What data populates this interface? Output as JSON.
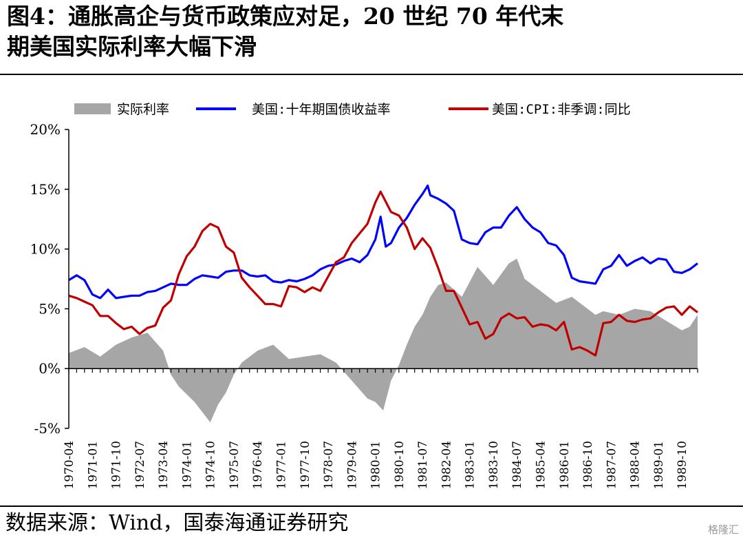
{
  "header": {
    "title_line1": "图4：通胀高企与货币政策应对足，20 世纪 70 年代末",
    "title_line2": "期美国实际利率大幅下滑"
  },
  "footer": {
    "source": "数据来源：Wind，国泰海通证券研究",
    "watermark": "格隆汇"
  },
  "chart_data": {
    "type": "line",
    "y_tick_labels": [
      "20%",
      "15%",
      "10%",
      "5%",
      "0%",
      "-5%"
    ],
    "ylim": [
      -5,
      20
    ],
    "x_tick_labels": [
      "1970-04",
      "1971-01",
      "1971-10",
      "1972-07",
      "1973-04",
      "1974-01",
      "1974-10",
      "1975-07",
      "1976-04",
      "1977-01",
      "1977-10",
      "1978-07",
      "1979-04",
      "1980-01",
      "1980-10",
      "1981-07",
      "1982-04",
      "1983-01",
      "1983-10",
      "1984-07",
      "1985-04",
      "1986-01",
      "1986-10",
      "1987-07",
      "1988-04",
      "1989-01",
      "1989-10"
    ],
    "xlim": [
      "1970-04",
      "1990-04"
    ],
    "legend_position": "top",
    "series": [
      {
        "name": "实际利率",
        "kind": "area",
        "color": "#a6a6a6",
        "x": [
          "1970-04",
          "1970-10",
          "1971-04",
          "1971-10",
          "1972-04",
          "1972-10",
          "1973-04",
          "1973-07",
          "1973-10",
          "1974-04",
          "1974-10",
          "1975-01",
          "1975-04",
          "1975-07",
          "1975-10",
          "1976-04",
          "1976-10",
          "1977-04",
          "1977-10",
          "1978-04",
          "1978-10",
          "1979-04",
          "1979-10",
          "1980-01",
          "1980-04",
          "1980-07",
          "1980-10",
          "1981-01",
          "1981-04",
          "1981-07",
          "1981-10",
          "1982-01",
          "1982-04",
          "1982-10",
          "1983-04",
          "1983-10",
          "1984-04",
          "1984-07",
          "1984-10",
          "1985-04",
          "1985-10",
          "1986-04",
          "1986-10",
          "1987-01",
          "1987-04",
          "1987-10",
          "1988-04",
          "1988-10",
          "1989-04",
          "1989-10",
          "1990-01",
          "1990-04"
        ],
        "y": [
          1.3,
          1.8,
          1.0,
          2.0,
          2.6,
          3.0,
          1.5,
          -0.5,
          -1.5,
          -2.8,
          -4.5,
          -3.0,
          -2.0,
          -0.5,
          0.5,
          1.5,
          2.0,
          0.8,
          1.0,
          1.2,
          0.5,
          -1.0,
          -2.5,
          -2.8,
          -3.5,
          -1.0,
          0.3,
          2.0,
          3.5,
          4.5,
          6.0,
          7.0,
          7.2,
          6.0,
          8.5,
          7.0,
          8.8,
          9.2,
          7.5,
          6.5,
          5.5,
          6.0,
          5.0,
          4.5,
          4.8,
          4.5,
          5.0,
          4.8,
          4.0,
          3.2,
          3.5,
          4.5
        ]
      },
      {
        "name": "美国:十年期国债收益率",
        "kind": "line",
        "color": "#0000ff",
        "x": [
          "1970-04",
          "1970-07",
          "1970-10",
          "1971-01",
          "1971-04",
          "1971-07",
          "1971-10",
          "1972-01",
          "1972-04",
          "1972-07",
          "1972-10",
          "1973-01",
          "1973-04",
          "1973-07",
          "1973-10",
          "1974-01",
          "1974-04",
          "1974-07",
          "1974-10",
          "1975-01",
          "1975-04",
          "1975-07",
          "1975-10",
          "1976-01",
          "1976-04",
          "1976-07",
          "1976-10",
          "1977-01",
          "1977-04",
          "1977-07",
          "1977-10",
          "1978-01",
          "1978-04",
          "1978-07",
          "1978-10",
          "1979-01",
          "1979-04",
          "1979-07",
          "1979-10",
          "1980-01",
          "1980-03",
          "1980-05",
          "1980-07",
          "1980-10",
          "1981-01",
          "1981-04",
          "1981-07",
          "1981-09",
          "1981-10",
          "1982-01",
          "1982-04",
          "1982-07",
          "1982-10",
          "1983-01",
          "1983-04",
          "1983-07",
          "1983-10",
          "1984-01",
          "1984-04",
          "1984-07",
          "1984-10",
          "1985-01",
          "1985-04",
          "1985-07",
          "1985-10",
          "1986-01",
          "1986-04",
          "1986-07",
          "1986-10",
          "1987-01",
          "1987-04",
          "1987-07",
          "1987-10",
          "1988-01",
          "1988-04",
          "1988-07",
          "1988-10",
          "1989-01",
          "1989-04",
          "1989-07",
          "1989-10",
          "1990-01",
          "1990-04"
        ],
        "y": [
          7.4,
          7.8,
          7.4,
          6.2,
          5.9,
          6.6,
          5.9,
          6.0,
          6.1,
          6.1,
          6.4,
          6.5,
          6.8,
          7.1,
          7.0,
          7.0,
          7.5,
          7.8,
          7.7,
          7.6,
          8.1,
          8.2,
          8.2,
          7.8,
          7.7,
          7.8,
          7.3,
          7.2,
          7.4,
          7.3,
          7.5,
          7.8,
          8.3,
          8.6,
          8.7,
          9.0,
          9.2,
          8.9,
          9.5,
          10.8,
          12.7,
          10.2,
          10.5,
          11.8,
          12.6,
          13.7,
          14.6,
          15.3,
          14.5,
          14.2,
          13.8,
          13.2,
          10.8,
          10.5,
          10.4,
          11.4,
          11.8,
          11.8,
          12.8,
          13.5,
          12.5,
          11.8,
          11.4,
          10.5,
          10.3,
          9.5,
          7.6,
          7.3,
          7.2,
          7.1,
          8.3,
          8.6,
          9.5,
          8.6,
          9.0,
          9.3,
          8.8,
          9.2,
          9.1,
          8.1,
          8.0,
          8.3,
          8.8
        ]
      },
      {
        "name": "美国:CPI:非季调:同比",
        "kind": "line",
        "color": "#c00000",
        "x": [
          "1970-04",
          "1970-07",
          "1970-10",
          "1971-01",
          "1971-04",
          "1971-07",
          "1971-10",
          "1972-01",
          "1972-04",
          "1972-07",
          "1972-10",
          "1973-01",
          "1973-04",
          "1973-07",
          "1973-10",
          "1974-01",
          "1974-04",
          "1974-07",
          "1974-10",
          "1975-01",
          "1975-04",
          "1975-07",
          "1975-10",
          "1976-01",
          "1976-04",
          "1976-07",
          "1976-10",
          "1977-01",
          "1977-04",
          "1977-07",
          "1977-10",
          "1978-01",
          "1978-04",
          "1978-07",
          "1978-10",
          "1979-01",
          "1979-04",
          "1979-07",
          "1979-10",
          "1980-01",
          "1980-03",
          "1980-07",
          "1980-10",
          "1981-01",
          "1981-04",
          "1981-07",
          "1981-10",
          "1982-01",
          "1982-04",
          "1982-07",
          "1982-10",
          "1983-01",
          "1983-04",
          "1983-07",
          "1983-10",
          "1984-01",
          "1984-04",
          "1984-07",
          "1984-10",
          "1985-01",
          "1985-04",
          "1985-07",
          "1985-10",
          "1986-01",
          "1986-04",
          "1986-07",
          "1986-10",
          "1987-01",
          "1987-04",
          "1987-07",
          "1987-10",
          "1988-01",
          "1988-04",
          "1988-07",
          "1988-10",
          "1989-01",
          "1989-04",
          "1989-07",
          "1989-10",
          "1990-01",
          "1990-04"
        ],
        "y": [
          6.1,
          5.9,
          5.6,
          5.3,
          4.4,
          4.4,
          3.8,
          3.3,
          3.5,
          2.9,
          3.4,
          3.6,
          5.1,
          5.7,
          7.9,
          9.4,
          10.2,
          11.5,
          12.1,
          11.8,
          10.2,
          9.7,
          7.6,
          6.8,
          6.1,
          5.4,
          5.4,
          5.2,
          6.9,
          6.8,
          6.4,
          6.8,
          6.5,
          7.7,
          8.9,
          9.3,
          10.5,
          11.3,
          12.1,
          13.9,
          14.8,
          13.1,
          12.8,
          11.8,
          10.0,
          10.9,
          10.1,
          8.4,
          6.5,
          6.5,
          5.1,
          3.7,
          3.9,
          2.5,
          2.9,
          4.2,
          4.6,
          4.2,
          4.3,
          3.5,
          3.7,
          3.6,
          3.2,
          3.9,
          1.6,
          1.8,
          1.5,
          1.1,
          3.8,
          3.9,
          4.5,
          4.0,
          3.9,
          4.1,
          4.2,
          4.7,
          5.1,
          5.2,
          4.5,
          5.2,
          4.7
        ]
      }
    ]
  }
}
